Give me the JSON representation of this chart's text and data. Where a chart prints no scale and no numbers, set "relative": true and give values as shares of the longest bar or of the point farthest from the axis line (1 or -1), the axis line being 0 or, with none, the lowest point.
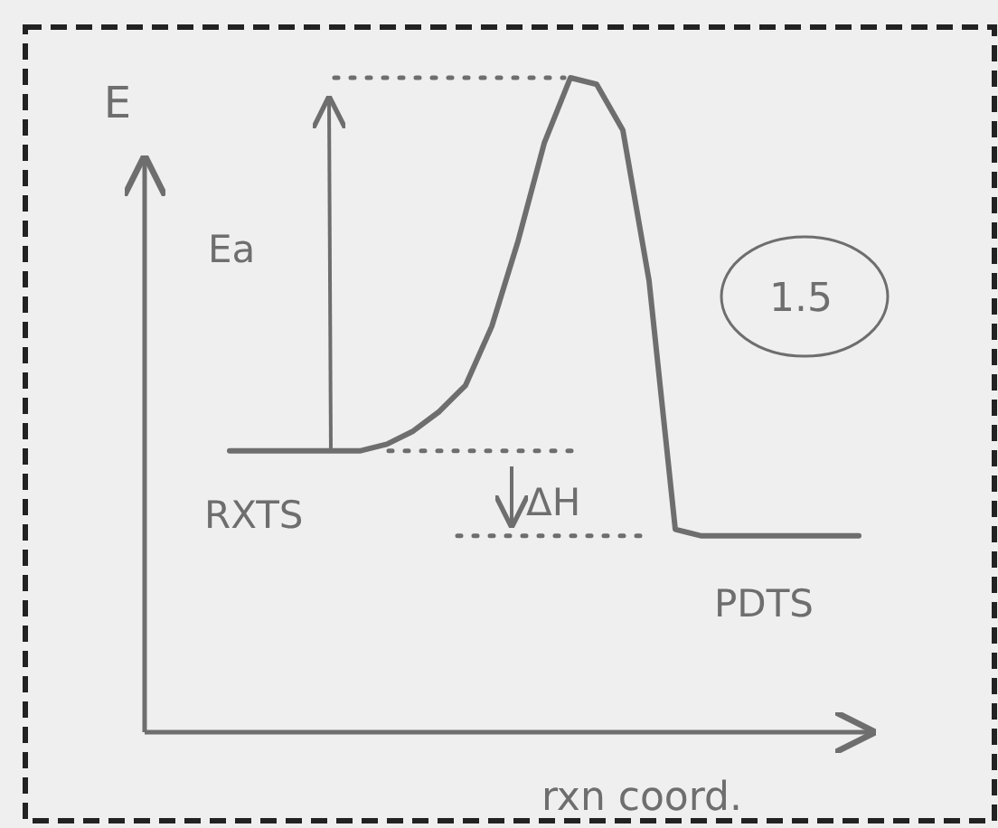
{
  "chart_data": {
    "type": "line",
    "relative": true,
    "xlabel": "rxn coord.",
    "ylabel": "E",
    "categories": [
      null,
      null,
      null,
      null,
      null,
      null,
      null,
      null,
      null,
      null,
      null,
      null,
      null,
      null,
      null,
      null,
      null,
      null,
      null,
      null,
      null,
      null,
      null,
      null,
      null
    ],
    "series": [
      {
        "color": "#6e6e6e",
        "values": [
          0.43,
          0.43,
          0.43,
          0.43,
          0.43,
          0.43,
          0.44,
          0.46,
          0.49,
          0.53,
          0.62,
          0.75,
          0.9,
          1.0,
          0.99,
          0.92,
          0.69,
          0.31,
          0.3,
          0.3,
          0.3,
          0.3,
          0.3,
          0.3,
          0.3
        ]
      }
    ],
    "annotations": [
      "Ea",
      "RXTS",
      "ΔH",
      "PDTS",
      "1.5"
    ],
    "ref_lines": [
      {
        "axis": "y",
        "value": 1.0,
        "line_style": "dotted",
        "color": "#6e6e6e"
      },
      {
        "axis": "y",
        "value": 0.43,
        "line_style": "dotted",
        "color": "#6e6e6e"
      },
      {
        "axis": "y",
        "value": 0.3,
        "line_style": "dotted",
        "color": "#6e6e6e"
      }
    ],
    "marker": "none",
    "line_style": "solid"
  }
}
